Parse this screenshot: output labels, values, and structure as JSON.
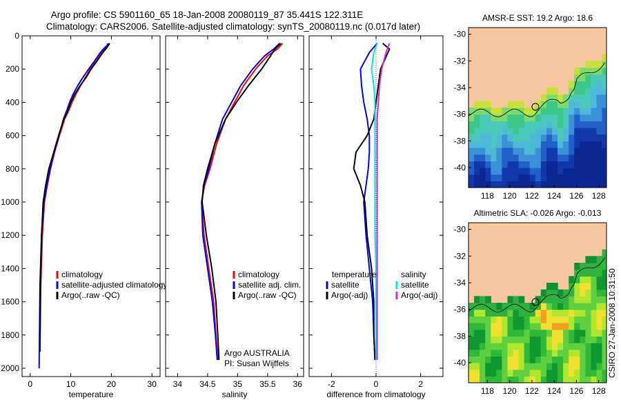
{
  "header": {
    "title_line1": "Argo profile: CS 5901160_65 18-Jan-2008 20080119_87 35.441S 122.311E",
    "title_line2": "Climatology: CARS2006. Satellite-adjusted climatology: synTS_20080119.nc (0.017d later)"
  },
  "side_label": "CSIRO 27-Jan-2008 10:31:50",
  "colors": {
    "climatology": "#ff0000",
    "satellite": "#0000ff",
    "argo": "#000000",
    "satellite_salinity": "#00e5ee",
    "argo_salinity": "#e020e0",
    "land": "#f7c8a0"
  },
  "chart_data": [
    {
      "type": "line",
      "id": "temperature",
      "xlabel": "temperature",
      "ylabel": "",
      "xlim": [
        -2,
        32
      ],
      "ylim": [
        2050,
        0
      ],
      "xticks": [
        "0",
        "10",
        "20",
        "30"
      ],
      "yticks": [
        "0",
        "200",
        "400",
        "600",
        "800",
        "1000",
        "1200",
        "1400",
        "1600",
        "1800",
        "2000"
      ],
      "legend": [
        "climatology",
        "satellite-adjusted climatology",
        "Argo(..raw -QC)"
      ],
      "series": [
        {
          "name": "climatology",
          "color": "#ff0000",
          "x": [
            19.1,
            18.8,
            17.5,
            16.0,
            14.8,
            13.6,
            12.4,
            11.3,
            10.3,
            9.5,
            8.5,
            7.2,
            6.0,
            5.0,
            4.2,
            3.5,
            3.0,
            2.6,
            2.4
          ],
          "y": [
            45,
            70,
            100,
            150,
            200,
            250,
            300,
            350,
            400,
            450,
            500,
            600,
            700,
            800,
            900,
            1000,
            1200,
            1500,
            1900
          ]
        },
        {
          "name": "satellite-adjusted climatology",
          "color": "#0000ff",
          "x": [
            19.5,
            18.4,
            17.3,
            15.9,
            14.4,
            13.0,
            11.7,
            10.6,
            9.7,
            9.0,
            8.2,
            7.1,
            5.9,
            4.9,
            4.1,
            3.4,
            2.8,
            2.4,
            2.2
          ],
          "y": [
            45,
            70,
            100,
            150,
            200,
            250,
            300,
            350,
            400,
            450,
            500,
            600,
            700,
            800,
            900,
            1000,
            1200,
            1500,
            2000
          ]
        },
        {
          "name": "Argo(..raw -QC)",
          "color": "#000000",
          "x": [
            19.6,
            18.9,
            17.9,
            16.5,
            15.0,
            13.8,
            12.3,
            11.0,
            10.0,
            9.3,
            8.3,
            7.0,
            5.8,
            4.6,
            3.8,
            3.2,
            2.8,
            2.5,
            2.4
          ],
          "y": [
            45,
            70,
            100,
            150,
            200,
            250,
            300,
            350,
            400,
            450,
            500,
            600,
            700,
            800,
            900,
            1000,
            1200,
            1500,
            1900
          ]
        }
      ]
    },
    {
      "type": "line",
      "id": "salinity",
      "xlabel": "salinity",
      "ylabel": "",
      "xlim": [
        33.8,
        36.1
      ],
      "ylim": [
        2050,
        0
      ],
      "xticks": [
        "34",
        "34.5",
        "35",
        "35.5",
        "36"
      ],
      "yticks": [
        "0",
        "200",
        "400",
        "600",
        "800",
        "1000",
        "1200",
        "1400",
        "1600",
        "1800",
        "2000"
      ],
      "legend": [
        "climatology",
        "satellite adj. clim.",
        "Argo(..raw -QC)"
      ],
      "annotation": [
        "Argo AUSTRALIA",
        "PI: Susan Wijffels"
      ],
      "series": [
        {
          "name": "climatology",
          "color": "#ff0000",
          "x": [
            35.75,
            35.66,
            35.5,
            35.3,
            35.1,
            34.95,
            34.8,
            34.65,
            34.54,
            34.45,
            34.4,
            34.44,
            34.52,
            34.6,
            34.64,
            34.67
          ],
          "y": [
            45,
            80,
            120,
            200,
            300,
            400,
            500,
            650,
            800,
            900,
            1000,
            1200,
            1400,
            1600,
            1800,
            1950
          ]
        },
        {
          "name": "satellite adj. clim.",
          "color": "#0000ff",
          "x": [
            35.7,
            35.6,
            35.45,
            35.25,
            35.05,
            34.9,
            34.75,
            34.62,
            34.52,
            34.44,
            34.4,
            34.42,
            34.5,
            34.58,
            34.63,
            34.66
          ],
          "y": [
            45,
            80,
            120,
            200,
            300,
            400,
            500,
            650,
            800,
            900,
            1000,
            1200,
            1400,
            1600,
            1800,
            1950
          ]
        },
        {
          "name": "Argo(..raw -QC)",
          "color": "#000000",
          "x": [
            35.72,
            35.62,
            35.55,
            35.4,
            35.18,
            34.98,
            34.8,
            34.62,
            34.5,
            34.43,
            34.41,
            34.48,
            34.57,
            34.64,
            34.67,
            34.69
          ],
          "y": [
            45,
            80,
            120,
            200,
            300,
            400,
            500,
            650,
            800,
            900,
            1000,
            1200,
            1400,
            1600,
            1800,
            1950
          ]
        }
      ]
    },
    {
      "type": "line",
      "id": "difference",
      "xlabel": "difference from climatology",
      "ylabel": "",
      "xlim": [
        -3,
        3
      ],
      "ylim": [
        2050,
        0
      ],
      "xticks": [
        "-2",
        "0",
        "2"
      ],
      "yticks": [
        "0",
        "200",
        "400",
        "600",
        "800",
        "1000",
        "1200",
        "1400",
        "1600",
        "1800",
        "2000"
      ],
      "legend_left": [
        "temperature",
        "satellite",
        "Argo(-adj)"
      ],
      "legend_right": [
        "salinity",
        "satellite",
        "Argo(-adj)"
      ],
      "series": [
        {
          "name": "satellite",
          "group": "temperature",
          "color": "#0000ff",
          "x": [
            0.05,
            -0.3,
            -0.7,
            -0.65,
            -0.55,
            -0.4,
            -0.3,
            -0.3,
            -0.35,
            -0.45,
            -0.55,
            -0.45,
            -0.3,
            -0.15,
            -0.1,
            -0.05
          ],
          "y": [
            45,
            100,
            200,
            300,
            400,
            500,
            600,
            700,
            800,
            900,
            1000,
            1200,
            1400,
            1600,
            1800,
            1950
          ]
        },
        {
          "name": "Argo(-adj)",
          "group": "temperature",
          "color": "#000000",
          "x": [
            0.3,
            0.6,
            0.2,
            0.1,
            0.0,
            -0.1,
            -0.4,
            -0.9,
            -1.0,
            -0.7,
            -0.5,
            -0.4,
            -0.2,
            -0.1,
            -0.1,
            -0.05
          ],
          "y": [
            45,
            80,
            200,
            300,
            400,
            500,
            600,
            700,
            800,
            900,
            1000,
            1200,
            1400,
            1600,
            1800,
            1950
          ]
        },
        {
          "name": "satellite",
          "group": "salinity",
          "color": "#00e5ee",
          "x": [
            0.05,
            -0.1,
            -0.2,
            -0.1,
            -0.05,
            -0.05,
            -0.05,
            -0.05,
            -0.05,
            -0.05,
            -0.05,
            0.0,
            0.0,
            0.0
          ],
          "y": [
            45,
            100,
            200,
            300,
            400,
            500,
            600,
            700,
            800,
            1000,
            1200,
            1400,
            1600,
            1950
          ]
        },
        {
          "name": "Argo(-adj)",
          "group": "salinity",
          "color": "#e020e0",
          "x": [
            0.6,
            0.45,
            0.25,
            0.15,
            0.1,
            0.05,
            0.05,
            0.05,
            0.05,
            0.05,
            0.05,
            0.05,
            0.05,
            0.05
          ],
          "y": [
            45,
            100,
            200,
            300,
            400,
            500,
            600,
            700,
            800,
            1000,
            1200,
            1400,
            1600,
            1950
          ]
        }
      ]
    },
    {
      "type": "heatmap",
      "id": "sst_map",
      "title": "AMSR-E SST: 19.2 Argo: 18.6",
      "xlim": [
        116.3,
        128.7
      ],
      "ylim": [
        -41.5,
        -29.5
      ],
      "xticks": [
        "118",
        "120",
        "122",
        "124",
        "126",
        "128"
      ],
      "yticks": [
        "-30",
        "-32",
        "-34",
        "-36",
        "-38",
        "-40"
      ],
      "argo_position": [
        122.311,
        -35.441
      ]
    },
    {
      "type": "heatmap",
      "id": "sla_map",
      "title": "Altimetric SLA: -0.026 Argo: -0.013",
      "xlim": [
        116.3,
        128.7
      ],
      "ylim": [
        -41.5,
        -29.5
      ],
      "xticks": [
        "118",
        "120",
        "122",
        "124",
        "126",
        "128"
      ],
      "yticks": [
        "-30",
        "-32",
        "-34",
        "-36",
        "-38",
        "-40"
      ],
      "argo_position": [
        122.311,
        -35.441
      ]
    }
  ]
}
